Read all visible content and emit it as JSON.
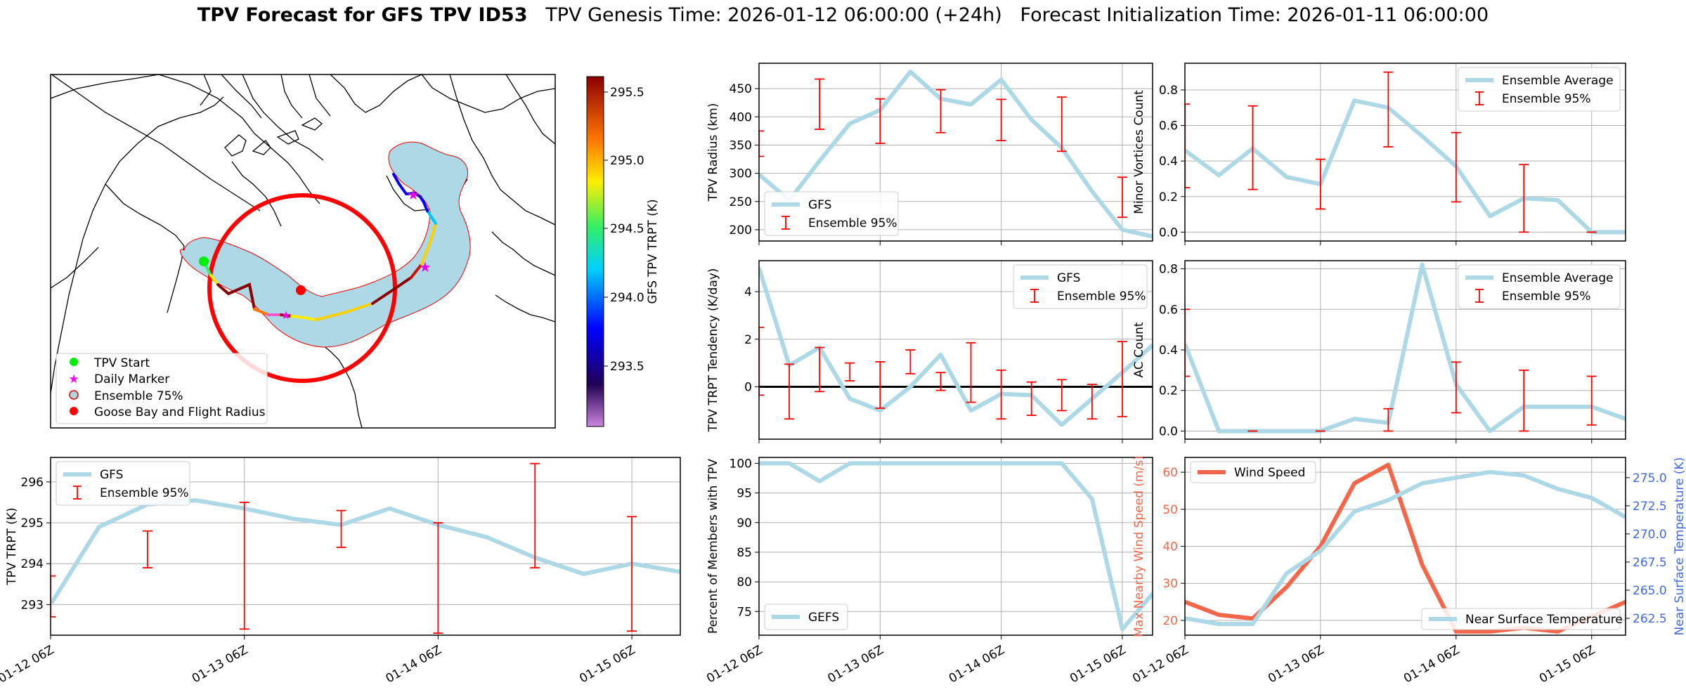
{
  "figure": {
    "title_bold": "TPV Forecast for GFS TPV ID53",
    "title_rest": "   TPV Genesis Time: 2026-01-12 06:00:00 (+24h)   Forecast Initialization Time: 2026-01-11 06:00:00"
  },
  "colors": {
    "gfs": "#add8e6",
    "error": "#ff0000",
    "wind": "#f4664a",
    "temp_axis": "#4169e1",
    "land_fill": "#add8e6",
    "radius_circle": "#ff0000"
  },
  "map": {
    "legend": [
      "TPV Start",
      "Daily Marker",
      "Ensemble 75%",
      "Goose Bay and Flight Radius"
    ],
    "colorbar_label": "GFS TPV TRPT (K)",
    "colorbar_ticks": [
      "295.5",
      "295.0",
      "294.5",
      "294.0",
      "293.5"
    ]
  },
  "chart_data": [
    {
      "id": "tpv-trpt",
      "type": "line",
      "ylabel": "TPV TRPT (K)",
      "ylim": [
        292.25,
        296.6
      ],
      "yticks": [
        293,
        294,
        295,
        296
      ],
      "x_tick_labels": [
        "01-12 06Z",
        "01-13 06Z",
        "01-14 06Z",
        "01-15 06Z"
      ],
      "legend": [
        "GFS",
        "Ensemble 95%"
      ],
      "legend_position": "upper-left",
      "series": [
        {
          "name": "GFS",
          "x": [
            0,
            6,
            12,
            18,
            24,
            30,
            36,
            42,
            48,
            54,
            60,
            66,
            72,
            78
          ],
          "values": [
            293.0,
            294.9,
            295.45,
            295.55,
            295.35,
            295.1,
            294.95,
            295.35,
            294.95,
            294.65,
            294.15,
            293.75,
            294.0,
            293.8
          ]
        }
      ],
      "errorbars": [
        {
          "x": 0,
          "low": 292.7,
          "high": 293.7
        },
        {
          "x": 12,
          "low": 293.9,
          "high": 294.8
        },
        {
          "x": 24,
          "low": 292.4,
          "high": 295.5
        },
        {
          "x": 36,
          "low": 294.4,
          "high": 295.3
        },
        {
          "x": 48,
          "low": 292.3,
          "high": 295.0
        },
        {
          "x": 60,
          "low": 293.9,
          "high": 296.45
        },
        {
          "x": 72,
          "low": 292.35,
          "high": 295.15
        }
      ]
    },
    {
      "id": "tpv-radius",
      "type": "line",
      "ylabel": "TPV Radius (km)",
      "ylim": [
        180,
        495
      ],
      "yticks": [
        200,
        250,
        300,
        350,
        400,
        450
      ],
      "x_tick_labels": [],
      "legend": [
        "GFS",
        "Ensemble 95%"
      ],
      "legend_position": "lower-left",
      "series": [
        {
          "name": "GFS",
          "x": [
            0,
            6,
            12,
            18,
            24,
            30,
            36,
            42,
            48,
            54,
            60,
            66,
            72,
            78
          ],
          "values": [
            298,
            252,
            322,
            388,
            412,
            480,
            432,
            422,
            466,
            395,
            345,
            268,
            200,
            188
          ]
        }
      ],
      "errorbars": [
        {
          "x": 0,
          "low": 330,
          "high": 375
        },
        {
          "x": 12,
          "low": 378,
          "high": 467
        },
        {
          "x": 24,
          "low": 353,
          "high": 432
        },
        {
          "x": 36,
          "low": 372,
          "high": 448
        },
        {
          "x": 48,
          "low": 358,
          "high": 431
        },
        {
          "x": 60,
          "low": 339,
          "high": 435
        },
        {
          "x": 72,
          "low": 222,
          "high": 293
        }
      ]
    },
    {
      "id": "minor-vortices",
      "type": "line",
      "ylabel": "Minor Vortices Count",
      "ylim": [
        -0.05,
        0.95
      ],
      "yticks": [
        0.0,
        0.2,
        0.4,
        0.6,
        0.8
      ],
      "x_tick_labels": [],
      "legend": [
        "Ensemble Average",
        "Ensemble 95%"
      ],
      "legend_position": "upper-right",
      "series": [
        {
          "name": "Ensemble Average",
          "x": [
            0,
            6,
            12,
            18,
            24,
            30,
            36,
            42,
            48,
            54,
            60,
            66,
            72,
            78
          ],
          "values": [
            0.46,
            0.32,
            0.47,
            0.31,
            0.27,
            0.74,
            0.7,
            0.54,
            0.37,
            0.09,
            0.19,
            0.18,
            0.0,
            0.0
          ]
        }
      ],
      "errorbars": [
        {
          "x": 0,
          "low": 0.25,
          "high": 0.72
        },
        {
          "x": 12,
          "low": 0.24,
          "high": 0.71
        },
        {
          "x": 24,
          "low": 0.13,
          "high": 0.41
        },
        {
          "x": 36,
          "low": 0.48,
          "high": 0.9
        },
        {
          "x": 48,
          "low": 0.17,
          "high": 0.56
        },
        {
          "x": 60,
          "low": 0.0,
          "high": 0.38
        },
        {
          "x": 72,
          "low": 0.0,
          "high": 0.0
        }
      ]
    },
    {
      "id": "trpt-tendency",
      "type": "line",
      "ylabel": "TPV TRPT Tendency (K/day)",
      "ylim": [
        -2.2,
        5.3
      ],
      "yticks": [
        0,
        2,
        4
      ],
      "zero_line": true,
      "x_tick_labels": [],
      "legend": [
        "GFS",
        "Ensemble 95%"
      ],
      "legend_position": "upper-right",
      "series": [
        {
          "name": "GFS",
          "x": [
            0,
            6,
            12,
            18,
            24,
            30,
            36,
            42,
            48,
            54,
            60,
            66,
            72,
            78
          ],
          "values": [
            5.0,
            0.9,
            1.65,
            -0.5,
            -1.0,
            0.0,
            1.35,
            -1.0,
            -0.3,
            -0.35,
            -1.6,
            -0.5,
            0.6,
            1.75
          ]
        }
      ],
      "errorbars": [
        {
          "x": 0,
          "low": -0.35,
          "high": 2.5
        },
        {
          "x": 6,
          "low": -1.35,
          "high": 0.95
        },
        {
          "x": 12,
          "low": -0.2,
          "high": 1.65
        },
        {
          "x": 18,
          "low": 0.25,
          "high": 1.0
        },
        {
          "x": 24,
          "low": -0.9,
          "high": 1.05
        },
        {
          "x": 30,
          "low": 0.55,
          "high": 1.55
        },
        {
          "x": 36,
          "low": -0.15,
          "high": 0.6
        },
        {
          "x": 42,
          "low": -0.65,
          "high": 1.85
        },
        {
          "x": 48,
          "low": -1.35,
          "high": 0.7
        },
        {
          "x": 54,
          "low": -1.2,
          "high": 0.2
        },
        {
          "x": 60,
          "low": -1.0,
          "high": 0.3
        },
        {
          "x": 66,
          "low": -1.35,
          "high": 0.1
        },
        {
          "x": 72,
          "low": -1.25,
          "high": 1.9
        }
      ]
    },
    {
      "id": "ac-count",
      "type": "line",
      "ylabel": "AC Count",
      "ylim": [
        -0.04,
        0.84
      ],
      "yticks": [
        0.0,
        0.2,
        0.4,
        0.6,
        0.8
      ],
      "x_tick_labels": [],
      "legend": [
        "Ensemble Average",
        "Ensemble 95%"
      ],
      "legend_position": "upper-right",
      "series": [
        {
          "name": "Ensemble Average",
          "x": [
            0,
            6,
            12,
            18,
            24,
            30,
            36,
            42,
            48,
            54,
            60,
            66,
            72,
            78
          ],
          "values": [
            0.43,
            0.0,
            0.0,
            0.0,
            0.0,
            0.06,
            0.04,
            0.82,
            0.23,
            0.0,
            0.12,
            0.12,
            0.12,
            0.06
          ]
        }
      ],
      "errorbars": [
        {
          "x": 0,
          "low": 0.27,
          "high": 0.6
        },
        {
          "x": 12,
          "low": 0.0,
          "high": 0.0
        },
        {
          "x": 24,
          "low": 0.0,
          "high": 0.0
        },
        {
          "x": 36,
          "low": 0.0,
          "high": 0.11
        },
        {
          "x": 48,
          "low": 0.09,
          "high": 0.34
        },
        {
          "x": 60,
          "low": 0.0,
          "high": 0.3
        },
        {
          "x": 72,
          "low": 0.03,
          "high": 0.27
        }
      ]
    },
    {
      "id": "percent-members",
      "type": "line",
      "ylabel": "Percent of Members with TPV",
      "ylim": [
        71,
        101
      ],
      "yticks": [
        75,
        80,
        85,
        90,
        95,
        100
      ],
      "x_tick_labels": [
        "01-12 06Z",
        "01-13 06Z",
        "01-14 06Z",
        "01-15 06Z"
      ],
      "legend": [
        "GEFS"
      ],
      "legend_position": "lower-left",
      "series": [
        {
          "name": "GEFS",
          "x": [
            0,
            6,
            12,
            18,
            24,
            30,
            36,
            42,
            48,
            54,
            60,
            66,
            72,
            78
          ],
          "values": [
            100,
            100,
            97,
            100,
            100,
            100,
            100,
            100,
            100,
            100,
            100,
            94,
            72,
            78
          ]
        }
      ]
    },
    {
      "id": "wind-temp",
      "type": "line",
      "ylabel": "Max Nearby Wind Speed (m/s)",
      "ylabel_right": "Near Surface Temperature (K)",
      "ylim": [
        16,
        64
      ],
      "yticks": [
        20,
        30,
        40,
        50,
        60
      ],
      "ylim_right": [
        261.0,
        276.8
      ],
      "yticks_right": [
        "262.5",
        "265.0",
        "267.5",
        "270.0",
        "272.5",
        "275.0"
      ],
      "x_tick_labels": [
        "01-12 06Z",
        "01-13 06Z",
        "01-14 06Z",
        "01-15 06Z"
      ],
      "legend": [
        "Wind Speed",
        "Near Surface Temperature"
      ],
      "series": [
        {
          "name": "Wind Speed",
          "axis": "left",
          "x": [
            0,
            6,
            12,
            18,
            24,
            30,
            36,
            42,
            48,
            54,
            60,
            66,
            72,
            78
          ],
          "values": [
            25,
            21.5,
            20.5,
            29,
            40,
            57,
            62,
            35,
            17,
            17,
            18,
            17,
            21,
            25
          ]
        },
        {
          "name": "Near Surface Temperature",
          "axis": "right",
          "x": [
            0,
            6,
            12,
            18,
            24,
            30,
            36,
            42,
            48,
            54,
            60,
            66,
            72,
            78
          ],
          "values": [
            262.5,
            262.0,
            262.0,
            266.5,
            268.5,
            272.0,
            273.0,
            274.5,
            275.0,
            275.5,
            275.2,
            274.0,
            273.2,
            271.5
          ]
        }
      ]
    }
  ]
}
